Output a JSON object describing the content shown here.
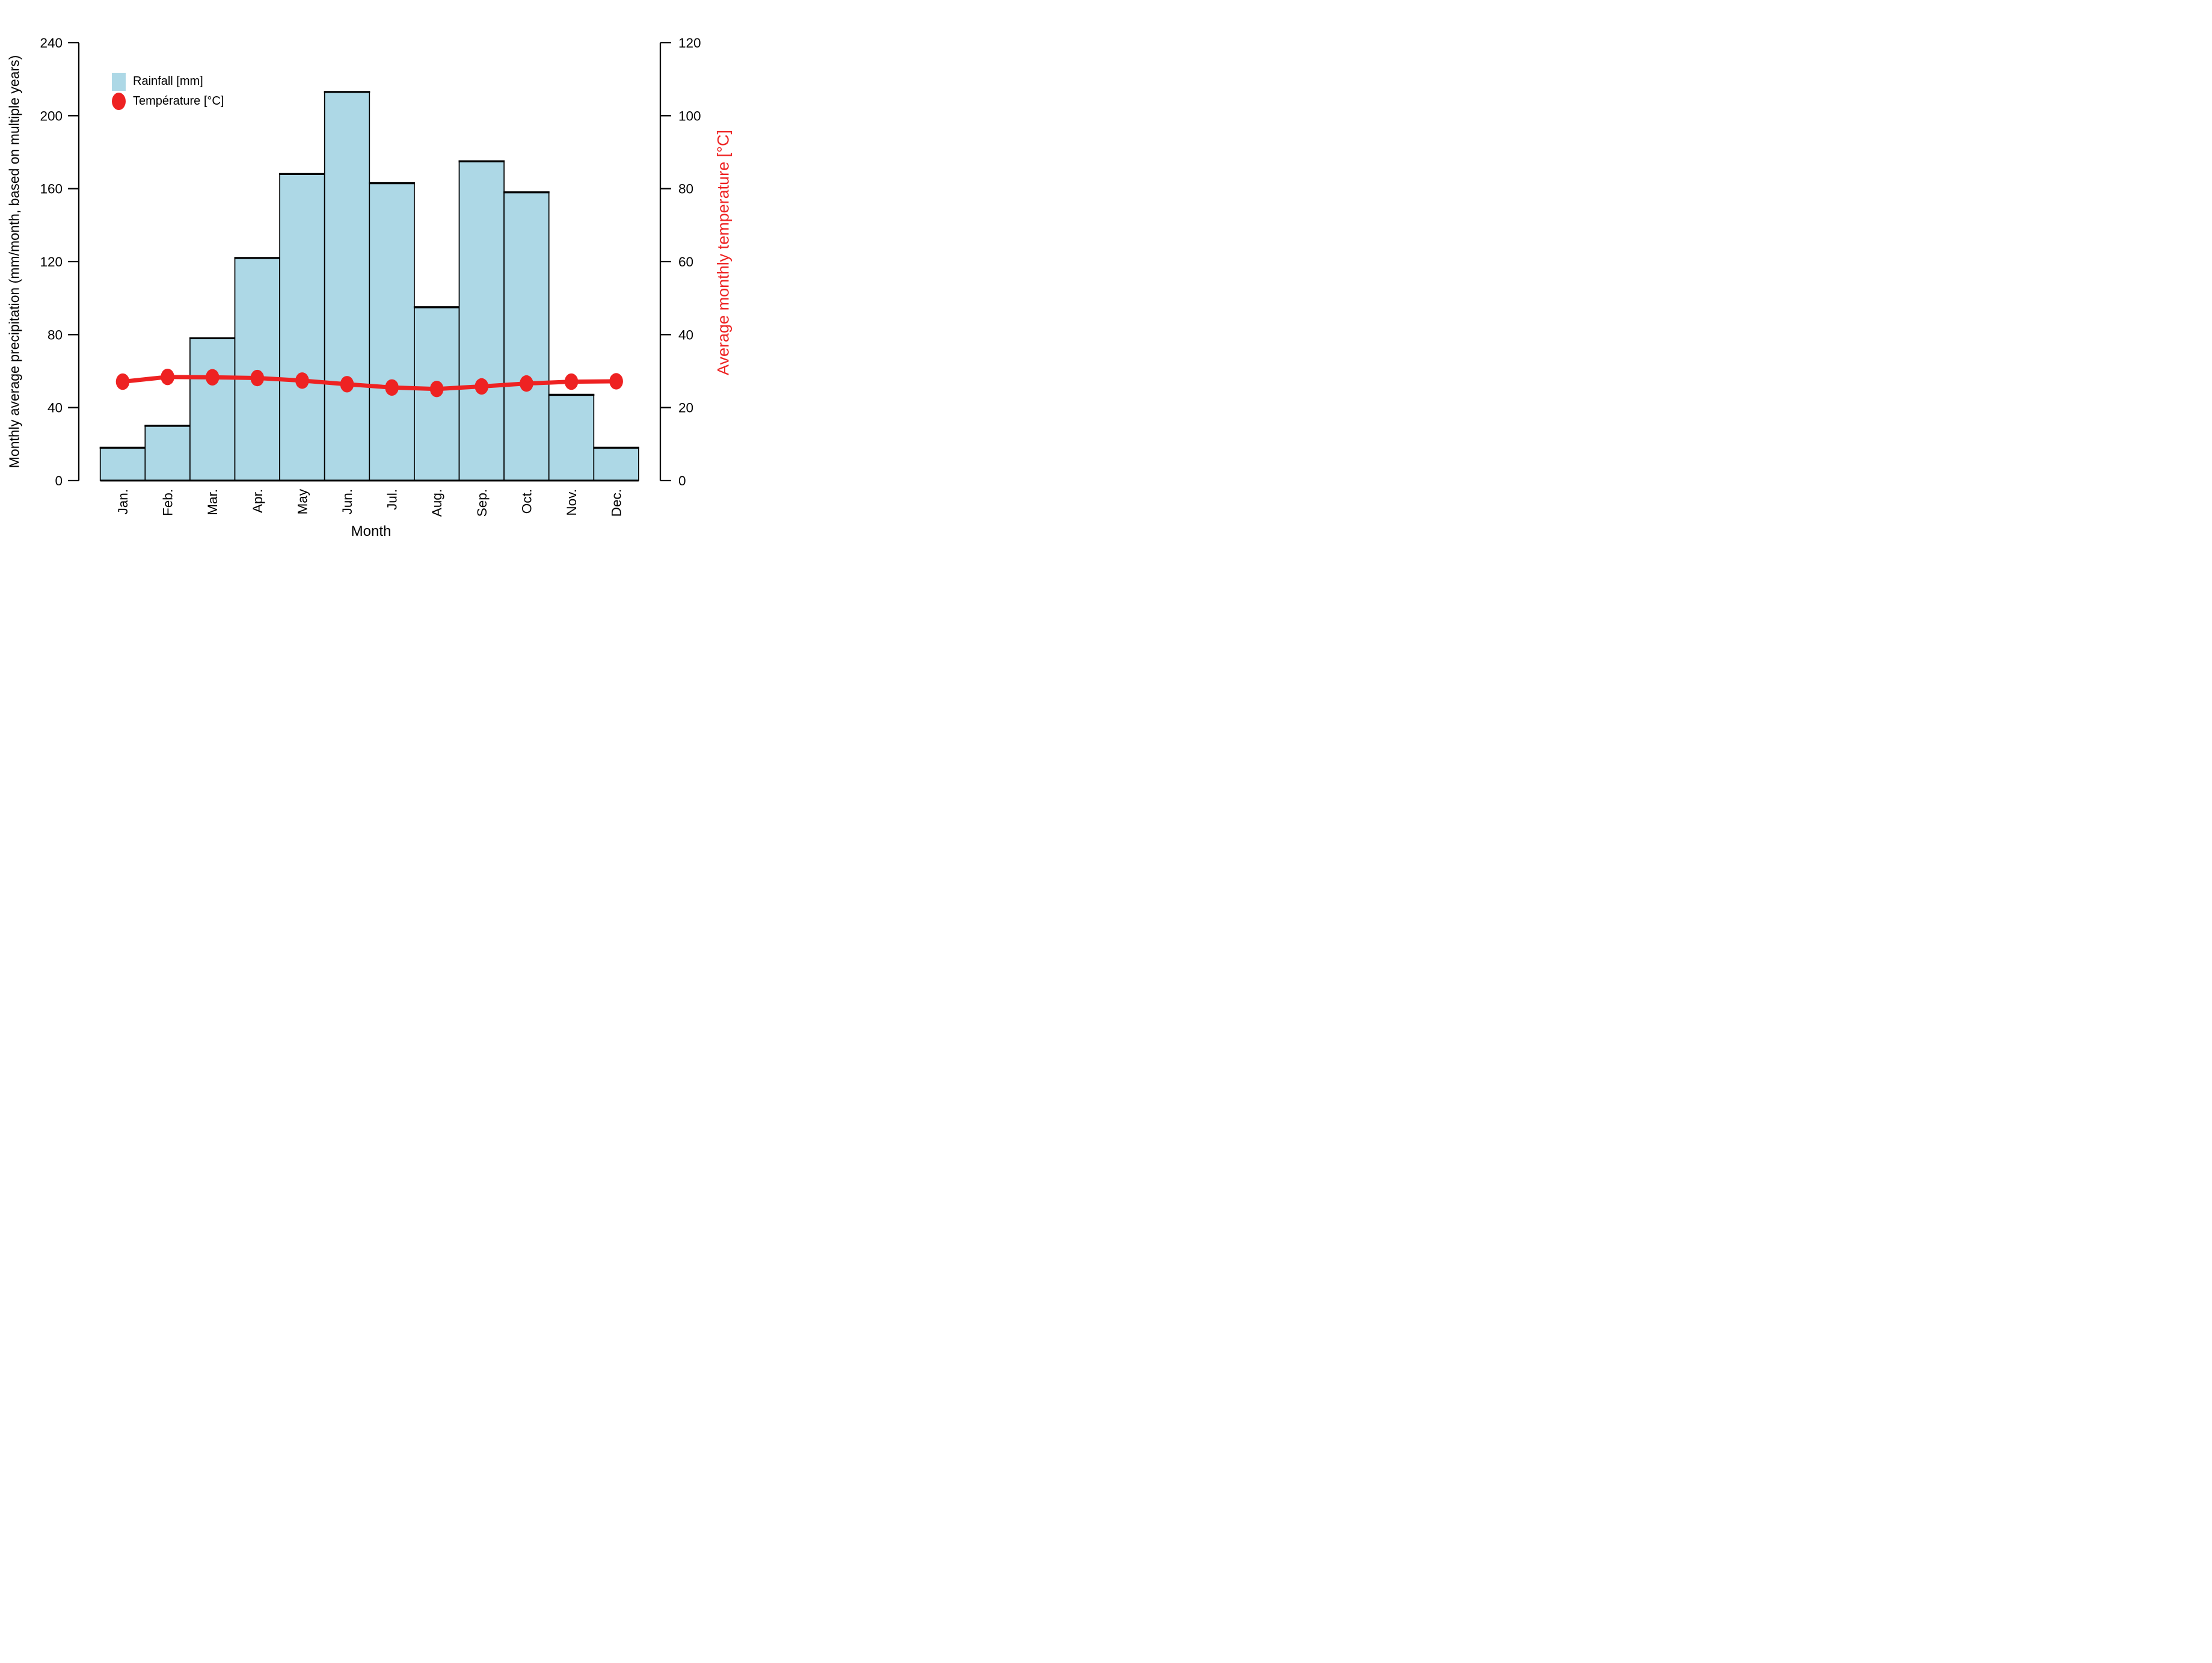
{
  "chart_data": {
    "type": "bar",
    "combo": "bar+line dual axis climate chart",
    "categories": [
      "Jan.",
      "Feb.",
      "Mar.",
      "Apr.",
      "May",
      "Jun.",
      "Jul.",
      "Aug.",
      "Sep.",
      "Oct.",
      "Nov.",
      "Dec."
    ],
    "series": [
      {
        "name": "Rainfall [mm]",
        "type": "bar",
        "axis": "left",
        "color": "#ADD8E6",
        "border_color": "#000000",
        "values": [
          18,
          30,
          78,
          122,
          168,
          213,
          163,
          95,
          175,
          158,
          47,
          18
        ]
      },
      {
        "name": "Température [°C]",
        "type": "line",
        "axis": "right",
        "color": "#EE2222",
        "values": [
          27.1,
          28.4,
          28.3,
          28.1,
          27.4,
          26.4,
          25.5,
          25.1,
          25.8,
          26.6,
          27.1,
          27.2
        ]
      }
    ],
    "x_axis": {
      "label": "Month"
    },
    "left_axis": {
      "label": "Monthly average precipitation (mm/month, based on multiple years)",
      "min": 0,
      "max": 240,
      "ticks": [
        0,
        40,
        80,
        120,
        160,
        200,
        240
      ],
      "color": "#000000"
    },
    "right_axis": {
      "label": "Average monthly temperature [°C]",
      "min": 0,
      "max": 120,
      "ticks": [
        0,
        20,
        40,
        60,
        80,
        100,
        120
      ],
      "color": "#EE2222"
    },
    "legend": {
      "position": "inside-top-left",
      "items": [
        "Rainfall [mm]",
        "Température [°C]"
      ]
    },
    "grid": false,
    "background": "#FFFFFF"
  }
}
